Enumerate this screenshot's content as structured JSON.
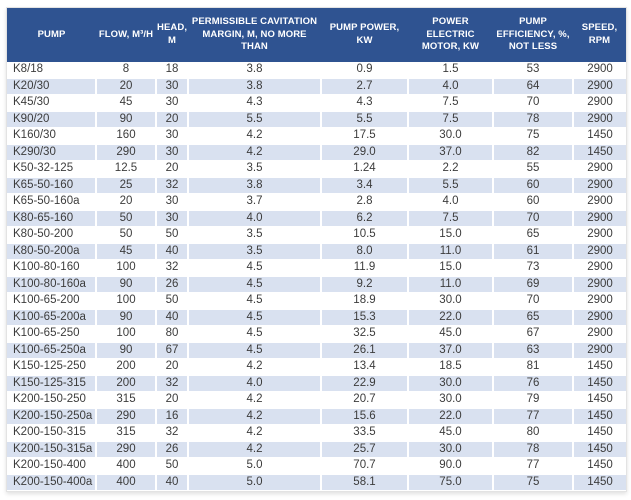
{
  "colors": {
    "header_bg": "#2f5391",
    "header_text": "#ffffff",
    "row_alt_bg": "#d9e1f0",
    "row_bg": "#ffffff",
    "body_text": "#3c3c3c",
    "grid_line": "#ffffff"
  },
  "table": {
    "columns": [
      {
        "label": "PUMP"
      },
      {
        "label": "FLOW, M³/H"
      },
      {
        "label": "HEAD, M"
      },
      {
        "label": "PERMISSIBLE CAVITATION MARGIN, M, NO MORE THAN"
      },
      {
        "label": "PUMP POWER, KW"
      },
      {
        "label": "POWER ELECTRIC MOTOR, KW"
      },
      {
        "label": "PUMP EFFICIENCY, %, NOT LESS"
      },
      {
        "label": "SPEED, RPM"
      }
    ],
    "rows": [
      [
        "K8/18",
        "8",
        "18",
        "3.8",
        "0.9",
        "1.5",
        "53",
        "2900"
      ],
      [
        "K20/30",
        "20",
        "30",
        "3.8",
        "2.7",
        "4.0",
        "64",
        "2900"
      ],
      [
        "K45/30",
        "45",
        "30",
        "4.3",
        "4.3",
        "7.5",
        "70",
        "2900"
      ],
      [
        "K90/20",
        "90",
        "20",
        "5.5",
        "5.5",
        "7.5",
        "78",
        "2900"
      ],
      [
        "K160/30",
        "160",
        "30",
        "4.2",
        "17.5",
        "30.0",
        "75",
        "1450"
      ],
      [
        "K290/30",
        "290",
        "30",
        "4.2",
        "29.0",
        "37.0",
        "82",
        "1450"
      ],
      [
        "K50-32-125",
        "12.5",
        "20",
        "3.5",
        "1.24",
        "2.2",
        "55",
        "2900"
      ],
      [
        "K65-50-160",
        "25",
        "32",
        "3.8",
        "3.4",
        "5.5",
        "60",
        "2900"
      ],
      [
        "K65-50-160a",
        "20",
        "30",
        "3.7",
        "2.8",
        "4.0",
        "60",
        "2900"
      ],
      [
        "K80-65-160",
        "50",
        "30",
        "4.0",
        "6.2",
        "7.5",
        "70",
        "2900"
      ],
      [
        "K80-50-200",
        "50",
        "50",
        "3.5",
        "10.5",
        "15.0",
        "65",
        "2900"
      ],
      [
        "K80-50-200a",
        "45",
        "40",
        "3.5",
        "8.0",
        "11.0",
        "61",
        "2900"
      ],
      [
        "K100-80-160",
        "100",
        "32",
        "4.5",
        "11.9",
        "15.0",
        "73",
        "2900"
      ],
      [
        "K100-80-160a",
        "90",
        "26",
        "4.5",
        "9.2",
        "11.0",
        "69",
        "2900"
      ],
      [
        "K100-65-200",
        "100",
        "50",
        "4.5",
        "18.9",
        "30.0",
        "70",
        "2900"
      ],
      [
        "K100-65-200a",
        "90",
        "40",
        "4.5",
        "15.3",
        "22.0",
        "65",
        "2900"
      ],
      [
        "K100-65-250",
        "100",
        "80",
        "4.5",
        "32.5",
        "45.0",
        "67",
        "2900"
      ],
      [
        "K100-65-250a",
        "90",
        "67",
        "4.5",
        "26.1",
        "37.0",
        "63",
        "2900"
      ],
      [
        "K150-125-250",
        "200",
        "20",
        "4.2",
        "13.4",
        "18.5",
        "81",
        "1450"
      ],
      [
        "K150-125-315",
        "200",
        "32",
        "4.0",
        "22.9",
        "30.0",
        "76",
        "1450"
      ],
      [
        "K200-150-250",
        "315",
        "20",
        "4.2",
        "20.7",
        "30.0",
        "79",
        "1450"
      ],
      [
        "K200-150-250a",
        "290",
        "16",
        "4.2",
        "15.6",
        "22.0",
        "77",
        "1450"
      ],
      [
        "K200-150-315",
        "315",
        "32",
        "4.2",
        "33.5",
        "45.0",
        "80",
        "1450"
      ],
      [
        "K200-150-315a",
        "290",
        "26",
        "4.2",
        "25.7",
        "30.0",
        "78",
        "1450"
      ],
      [
        "K200-150-400",
        "400",
        "50",
        "5.0",
        "70.7",
        "90.0",
        "77",
        "1450"
      ],
      [
        "K200-150-400a",
        "400",
        "40",
        "5.0",
        "58.1",
        "75.0",
        "75",
        "1450"
      ]
    ]
  }
}
